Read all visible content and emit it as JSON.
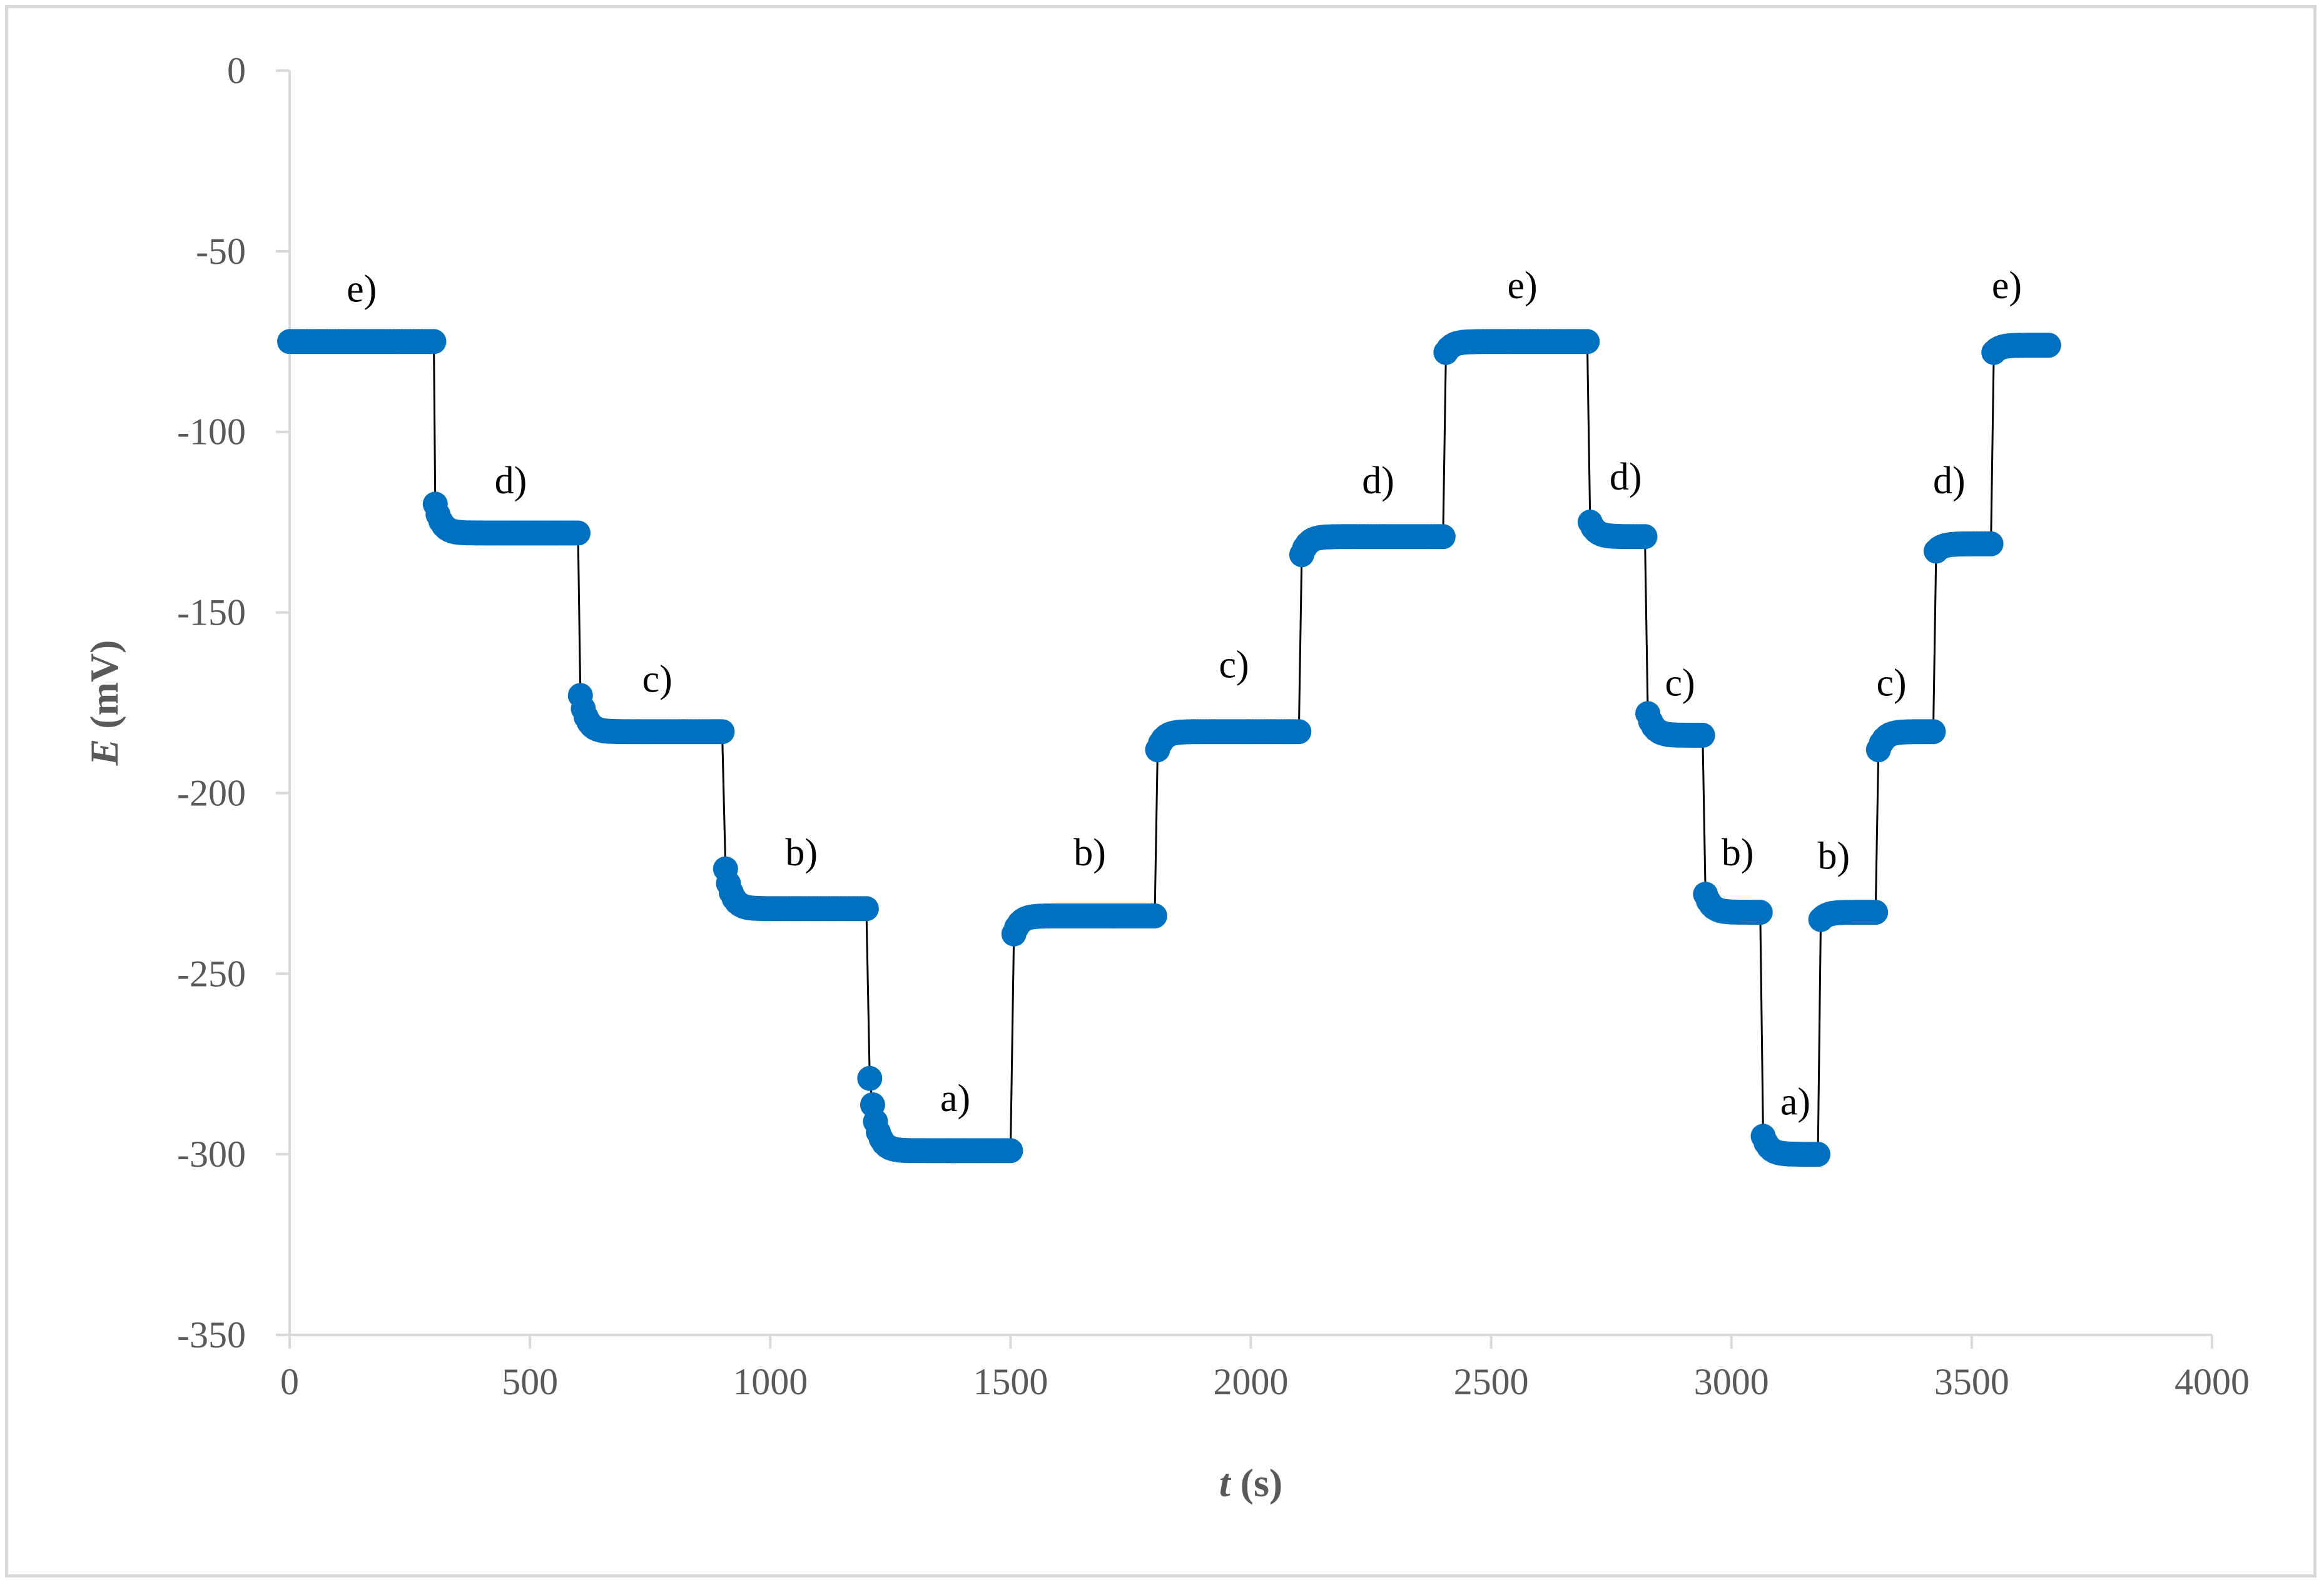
{
  "chart_data": {
    "type": "scatter",
    "title": "",
    "xlabel_italic": "t",
    "xlabel_rest": " (s)",
    "ylabel_italic": "E",
    "ylabel_rest": " (mV)",
    "xlim": [
      0,
      4000
    ],
    "ylim": [
      -350,
      0
    ],
    "xticks": [
      0,
      500,
      1000,
      1500,
      2000,
      2500,
      3000,
      3500,
      4000
    ],
    "yticks": [
      0,
      -50,
      -100,
      -150,
      -200,
      -250,
      -300,
      -350
    ],
    "grid": false,
    "legend": "none",
    "marker_color": "#0070c0",
    "line_color": "#000000",
    "segments": [
      {
        "t0": 0,
        "t1": 300,
        "start": -75,
        "end": -75
      },
      {
        "t0": 303,
        "t1": 600,
        "start": -120,
        "end": -128
      },
      {
        "t0": 605,
        "t1": 900,
        "start": -173,
        "end": -183
      },
      {
        "t0": 907,
        "t1": 1200,
        "start": -221,
        "end": -232
      },
      {
        "t0": 1207,
        "t1": 1500,
        "start": -279,
        "end": -299
      },
      {
        "t0": 1507,
        "t1": 1800,
        "start": -239,
        "end": -234
      },
      {
        "t0": 1806,
        "t1": 2100,
        "start": -188,
        "end": -183
      },
      {
        "t0": 2106,
        "t1": 2400,
        "start": -134,
        "end": -129
      },
      {
        "t0": 2406,
        "t1": 2700,
        "start": -78,
        "end": -75
      },
      {
        "t0": 2706,
        "t1": 2820,
        "start": -125,
        "end": -129
      },
      {
        "t0": 2826,
        "t1": 2940,
        "start": -178,
        "end": -184
      },
      {
        "t0": 2946,
        "t1": 3060,
        "start": -228,
        "end": -233
      },
      {
        "t0": 3066,
        "t1": 3180,
        "start": -295,
        "end": -300
      },
      {
        "t0": 3186,
        "t1": 3300,
        "start": -235,
        "end": -233
      },
      {
        "t0": 3306,
        "t1": 3420,
        "start": -188,
        "end": -183
      },
      {
        "t0": 3426,
        "t1": 3540,
        "start": -133,
        "end": -131
      },
      {
        "t0": 3546,
        "t1": 3660,
        "start": -78,
        "end": -76
      }
    ],
    "annotations": [
      {
        "text": "e)",
        "x": 150,
        "y": -64
      },
      {
        "text": "d)",
        "x": 460,
        "y": -117
      },
      {
        "text": "c)",
        "x": 765,
        "y": -172
      },
      {
        "text": "b)",
        "x": 1065,
        "y": -220
      },
      {
        "text": "a)",
        "x": 1385,
        "y": -288
      },
      {
        "text": "b)",
        "x": 1665,
        "y": -220
      },
      {
        "text": "c)",
        "x": 1965,
        "y": -168
      },
      {
        "text": "d)",
        "x": 2265,
        "y": -117
      },
      {
        "text": "e)",
        "x": 2565,
        "y": -63
      },
      {
        "text": "d)",
        "x": 2780,
        "y": -116
      },
      {
        "text": "c)",
        "x": 2893,
        "y": -173
      },
      {
        "text": "b)",
        "x": 3013,
        "y": -220
      },
      {
        "text": "a)",
        "x": 3133,
        "y": -289
      },
      {
        "text": "b)",
        "x": 3213,
        "y": -221
      },
      {
        "text": "c)",
        "x": 3333,
        "y": -173
      },
      {
        "text": "d)",
        "x": 3453,
        "y": -117
      },
      {
        "text": "e)",
        "x": 3573,
        "y": -63
      }
    ]
  }
}
